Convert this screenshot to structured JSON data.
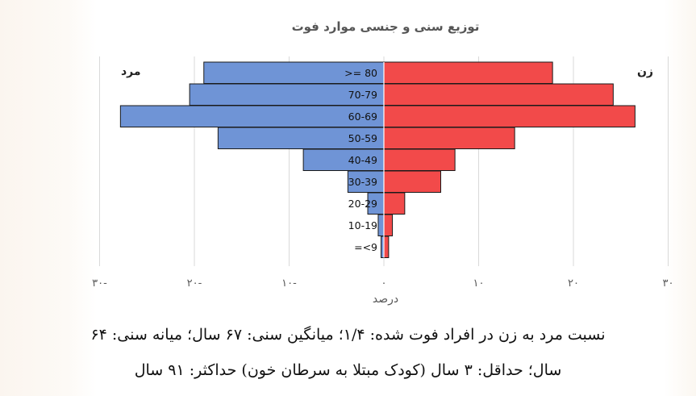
{
  "chart_data": {
    "type": "bar",
    "orientation": "horizontal-population-pyramid",
    "title": "توزیع سنی و جنسی موارد فوت",
    "xlabel": "درصد",
    "xlim": [
      -30,
      30
    ],
    "x_ticks": [
      -30,
      -20,
      -10,
      0,
      10,
      20,
      30
    ],
    "x_tick_labels": [
      "۳۰-",
      "۲۰-",
      "۱۰-",
      "۰",
      "۱۰",
      "۲۰",
      "۳۰"
    ],
    "grid": "vertical",
    "categories": [
      "=<9",
      "10-19",
      "20-29",
      "30-39",
      "40-49",
      "50-59",
      "60-69",
      "70-79",
      ">= 80"
    ],
    "series": [
      {
        "name": "مرد",
        "side": "left",
        "color": "#6f94d6",
        "values": [
          0.3,
          0.6,
          1.7,
          3.8,
          8.5,
          17.5,
          27.8,
          20.5,
          19.0
        ]
      },
      {
        "name": "زن",
        "side": "right",
        "color": "#f24a4a",
        "values": [
          0.5,
          0.9,
          2.2,
          6.0,
          7.5,
          13.8,
          26.5,
          24.2,
          17.8
        ]
      }
    ]
  },
  "caption": {
    "line1": "نسبت مرد به زن در افراد فوت شده: ۱/۴؛ میانگین سنی: ۶۷ سال؛ میانه سنی: ۶۴",
    "line2": "سال؛ حداقل: ۳ سال (کودک مبتلا به سرطان خون) حداکثر: ۹۱ سال"
  }
}
